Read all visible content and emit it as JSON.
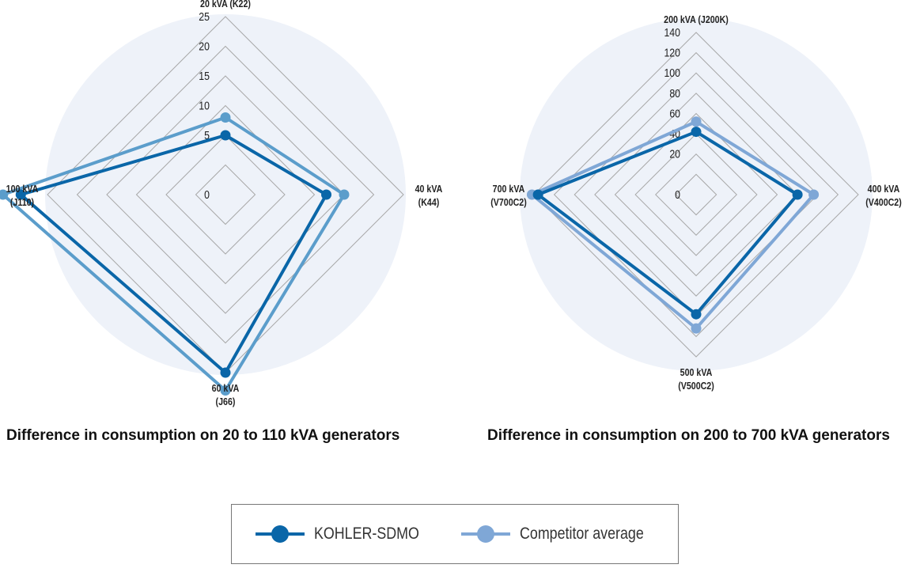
{
  "chart_data": [
    {
      "type": "radar",
      "title": "Difference in consumption on 20 to 110 kVA generators",
      "axes": [
        {
          "label_line1": "20 kVA (K22)",
          "label_line2": ""
        },
        {
          "label_line1": "40 kVA",
          "label_line2": "(K44)"
        },
        {
          "label_line1": "60 kVA",
          "label_line2": "(J66)"
        },
        {
          "label_line1": "100 kVA",
          "label_line2": "(J110)"
        }
      ],
      "ticks": [
        0,
        5,
        10,
        15,
        20,
        25
      ],
      "rmax": 25,
      "series": [
        {
          "name": "KOHLER-SDMO",
          "values": [
            5,
            12,
            25,
            29.5
          ]
        },
        {
          "name": "Competitor average",
          "values": [
            8,
            15,
            28,
            32.5
          ]
        }
      ]
    },
    {
      "type": "radar",
      "title": "Difference in consumption on 200 to 700 kVA generators",
      "axes": [
        {
          "label_line1": "200 kVA (J200K)",
          "label_line2": ""
        },
        {
          "label_line1": "400 kVA",
          "label_line2": "(V400C2)"
        },
        {
          "label_line1": "500 kVA",
          "label_line2": "(V500C2)"
        },
        {
          "label_line1": "700 kVA",
          "label_line2": "(V700C2)"
        }
      ],
      "ticks": [
        0,
        20,
        40,
        60,
        80,
        100,
        120,
        140
      ],
      "rmax": 140,
      "series": [
        {
          "name": "KOHLER-SDMO",
          "values": [
            42,
            80,
            98,
            136
          ]
        },
        {
          "name": "Competitor average",
          "values": [
            52,
            96,
            112,
            142
          ]
        }
      ]
    }
  ],
  "legend": {
    "items": [
      {
        "label": "KOHLER-SDMO",
        "color": "#0a66a8"
      },
      {
        "label": "Competitor average",
        "color": "#7fa7d6"
      }
    ]
  },
  "colors": {
    "kohler": "#0a66a8",
    "competitor": "#7fa7d6",
    "competitor_left": "#5b9dcb",
    "disc": "#eef2f9",
    "grid": "#a8a8a8"
  }
}
